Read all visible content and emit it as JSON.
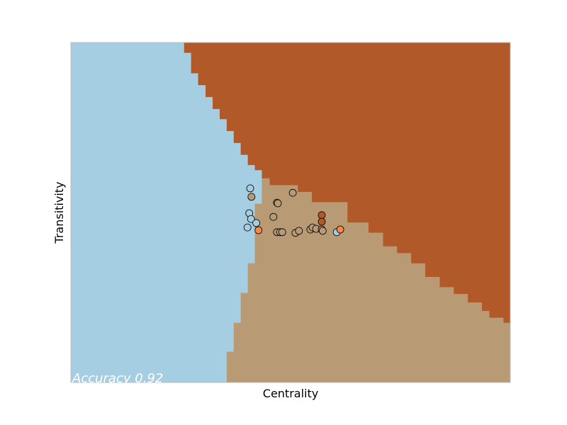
{
  "chart_data": {
    "type": "scatter",
    "title": "",
    "xlabel": "Centrality",
    "ylabel": "Transitivity",
    "xlim": [
      0,
      1
    ],
    "ylim": [
      0,
      1
    ],
    "grid": false,
    "ticks": false,
    "annotation": "Accuracy 0.92",
    "regions": [
      {
        "class": "A",
        "color": "#a6cee3",
        "boundary": [
          [
            0.355,
            0
          ],
          [
            0.355,
            0.09
          ],
          [
            0.371,
            0.09
          ],
          [
            0.371,
            0.175
          ],
          [
            0.387,
            0.175
          ],
          [
            0.387,
            0.263
          ],
          [
            0.403,
            0.263
          ],
          [
            0.403,
            0.35
          ],
          [
            0.419,
            0.35
          ],
          [
            0.419,
            0.525
          ],
          [
            0.435,
            0.525
          ],
          [
            0.435,
            0.6
          ],
          [
            0.419,
            0.6
          ],
          [
            0.419,
            0.615
          ],
          [
            0.403,
            0.615
          ],
          [
            0.403,
            0.635
          ],
          [
            0.387,
            0.635
          ],
          [
            0.387,
            0.67
          ],
          [
            0.371,
            0.67
          ],
          [
            0.371,
            0.705
          ],
          [
            0.355,
            0.705
          ],
          [
            0.355,
            0.74
          ],
          [
            0.339,
            0.74
          ],
          [
            0.339,
            0.775
          ],
          [
            0.323,
            0.775
          ],
          [
            0.323,
            0.805
          ],
          [
            0.307,
            0.805
          ],
          [
            0.307,
            0.84
          ],
          [
            0.29,
            0.84
          ],
          [
            0.29,
            0.875
          ],
          [
            0.274,
            0.875
          ],
          [
            0.274,
            0.91
          ],
          [
            0.258,
            0.91
          ],
          [
            0.258,
            1
          ]
        ]
      },
      {
        "class": "B",
        "color": "#b15928",
        "boundary": [
          [
            0.258,
            1
          ],
          [
            1,
            1
          ],
          [
            1,
            0.175
          ],
          [
            0.984,
            0.175
          ],
          [
            0.984,
            0.19
          ],
          [
            0.952,
            0.19
          ],
          [
            0.952,
            0.21
          ],
          [
            0.935,
            0.21
          ],
          [
            0.935,
            0.235
          ],
          [
            0.903,
            0.235
          ],
          [
            0.903,
            0.26
          ],
          [
            0.871,
            0.26
          ],
          [
            0.871,
            0.28
          ],
          [
            0.839,
            0.28
          ],
          [
            0.839,
            0.31
          ],
          [
            0.806,
            0.31
          ],
          [
            0.806,
            0.35
          ],
          [
            0.774,
            0.35
          ],
          [
            0.774,
            0.38
          ],
          [
            0.742,
            0.38
          ],
          [
            0.742,
            0.4
          ],
          [
            0.71,
            0.4
          ],
          [
            0.71,
            0.44
          ],
          [
            0.677,
            0.44
          ],
          [
            0.677,
            0.47
          ],
          [
            0.629,
            0.47
          ],
          [
            0.629,
            0.53
          ],
          [
            0.548,
            0.53
          ],
          [
            0.548,
            0.56
          ],
          [
            0.516,
            0.56
          ],
          [
            0.516,
            0.58
          ],
          [
            0.452,
            0.58
          ],
          [
            0.452,
            0.6
          ],
          [
            0.435,
            0.6
          ],
          [
            0.435,
            0.625
          ],
          [
            0.419,
            0.625
          ],
          [
            0.419,
            0.64
          ],
          [
            0.403,
            0.64
          ],
          [
            0.403,
            0.67
          ],
          [
            0.387,
            0.67
          ],
          [
            0.387,
            0.705
          ],
          [
            0.371,
            0.705
          ],
          [
            0.371,
            0.74
          ],
          [
            0.355,
            0.74
          ],
          [
            0.355,
            0.775
          ],
          [
            0.339,
            0.775
          ],
          [
            0.339,
            0.805
          ],
          [
            0.323,
            0.805
          ],
          [
            0.323,
            0.84
          ],
          [
            0.307,
            0.84
          ],
          [
            0.307,
            0.875
          ],
          [
            0.29,
            0.875
          ],
          [
            0.29,
            0.91
          ],
          [
            0.274,
            0.91
          ],
          [
            0.274,
            0.97
          ],
          [
            0.258,
            0.97
          ]
        ]
      },
      {
        "class": "C",
        "color": "#b89b74",
        "boundary": [
          [
            0.355,
            0
          ],
          [
            1,
            0
          ],
          [
            1,
            0.175
          ],
          [
            0.984,
            0.175
          ],
          [
            0.984,
            0.19
          ],
          [
            0.952,
            0.19
          ],
          [
            0.952,
            0.21
          ],
          [
            0.935,
            0.21
          ],
          [
            0.935,
            0.235
          ],
          [
            0.903,
            0.235
          ],
          [
            0.903,
            0.26
          ],
          [
            0.871,
            0.26
          ],
          [
            0.871,
            0.28
          ],
          [
            0.839,
            0.28
          ],
          [
            0.839,
            0.31
          ],
          [
            0.806,
            0.31
          ],
          [
            0.806,
            0.35
          ],
          [
            0.774,
            0.35
          ],
          [
            0.774,
            0.38
          ],
          [
            0.742,
            0.38
          ],
          [
            0.742,
            0.4
          ],
          [
            0.71,
            0.4
          ],
          [
            0.71,
            0.44
          ],
          [
            0.677,
            0.44
          ],
          [
            0.677,
            0.47
          ],
          [
            0.629,
            0.47
          ],
          [
            0.629,
            0.53
          ],
          [
            0.548,
            0.53
          ],
          [
            0.548,
            0.56
          ],
          [
            0.516,
            0.56
          ],
          [
            0.516,
            0.58
          ],
          [
            0.452,
            0.58
          ],
          [
            0.452,
            0.6
          ],
          [
            0.435,
            0.6
          ],
          [
            0.435,
            0.525
          ],
          [
            0.419,
            0.525
          ],
          [
            0.419,
            0.35
          ],
          [
            0.403,
            0.35
          ],
          [
            0.403,
            0.263
          ],
          [
            0.387,
            0.263
          ],
          [
            0.387,
            0.175
          ],
          [
            0.371,
            0.175
          ],
          [
            0.371,
            0.09
          ],
          [
            0.355,
            0.09
          ]
        ]
      }
    ],
    "points": [
      {
        "x": 0.408,
        "y": 0.571,
        "color": "#a6cee3"
      },
      {
        "x": 0.411,
        "y": 0.546,
        "color": "#b89b74"
      },
      {
        "x": 0.505,
        "y": 0.558,
        "color": "#b89b74"
      },
      {
        "x": 0.469,
        "y": 0.529,
        "color": "#b89b74"
      },
      {
        "x": 0.471,
        "y": 0.527,
        "color": "#b89b74"
      },
      {
        "x": 0.406,
        "y": 0.498,
        "color": "#a6cee3"
      },
      {
        "x": 0.41,
        "y": 0.481,
        "color": "#a6cee3"
      },
      {
        "x": 0.422,
        "y": 0.469,
        "color": "#a6cee3"
      },
      {
        "x": 0.461,
        "y": 0.487,
        "color": "#b89b74"
      },
      {
        "x": 0.571,
        "y": 0.492,
        "color": "#b15928"
      },
      {
        "x": 0.571,
        "y": 0.473,
        "color": "#b15928"
      },
      {
        "x": 0.402,
        "y": 0.456,
        "color": "#a6cee3"
      },
      {
        "x": 0.427,
        "y": 0.448,
        "color": "#f4874b"
      },
      {
        "x": 0.469,
        "y": 0.442,
        "color": "#b89b74"
      },
      {
        "x": 0.476,
        "y": 0.442,
        "color": "#b89b74"
      },
      {
        "x": 0.481,
        "y": 0.442,
        "color": "#b89b74"
      },
      {
        "x": 0.511,
        "y": 0.44,
        "color": "#b89b74"
      },
      {
        "x": 0.519,
        "y": 0.446,
        "color": "#b89b74"
      },
      {
        "x": 0.545,
        "y": 0.45,
        "color": "#b89b74"
      },
      {
        "x": 0.55,
        "y": 0.456,
        "color": "#b89b74"
      },
      {
        "x": 0.558,
        "y": 0.452,
        "color": "#b89b74"
      },
      {
        "x": 0.571,
        "y": 0.45,
        "color": "#b89b74"
      },
      {
        "x": 0.573,
        "y": 0.446,
        "color": "#b89b74"
      },
      {
        "x": 0.605,
        "y": 0.442,
        "color": "#a6cee3"
      },
      {
        "x": 0.613,
        "y": 0.45,
        "color": "#f4874b"
      }
    ]
  }
}
